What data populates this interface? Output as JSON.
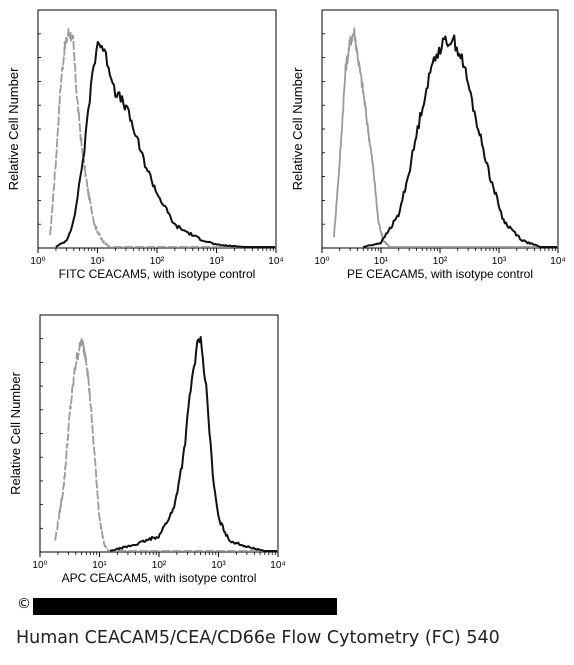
{
  "chart_data": [
    {
      "type": "histogram",
      "xlabel": "FITC CEACAM5,  with isotype control",
      "ylabel": "Relative Cell Number",
      "xscale": "log",
      "xlim": [
        1,
        10000
      ],
      "x_tick_labels": [
        "10⁰",
        "10¹",
        "10²",
        "10³",
        "10⁴"
      ],
      "series": [
        {
          "role": "isotype control",
          "color": "#9a9a9a",
          "style": "dashed",
          "x": [
            1.6,
            2.0,
            2.4,
            2.8,
            3.3,
            3.9,
            4.5,
            5.5,
            7,
            9,
            12,
            16
          ],
          "y": [
            0.05,
            0.4,
            0.75,
            0.92,
            1.0,
            0.95,
            0.7,
            0.45,
            0.25,
            0.1,
            0.03,
            0.0
          ]
        },
        {
          "role": "CEACAM5",
          "color": "#111111",
          "style": "solid",
          "x": [
            2,
            3,
            4,
            6,
            8,
            10,
            12,
            15,
            20,
            30,
            40,
            60,
            100,
            200,
            500,
            1000,
            3000
          ],
          "y": [
            0.0,
            0.03,
            0.12,
            0.45,
            0.78,
            0.95,
            0.93,
            0.85,
            0.72,
            0.65,
            0.55,
            0.4,
            0.25,
            0.1,
            0.04,
            0.01,
            0.0
          ]
        }
      ]
    },
    {
      "type": "histogram",
      "xlabel": "PE CEACAM5,  with isotype control",
      "ylabel": "Relative Cell Number",
      "xscale": "log",
      "xlim": [
        1,
        10000
      ],
      "x_tick_labels": [
        "10⁰",
        "10¹",
        "10²",
        "10³",
        "10⁴"
      ],
      "series": [
        {
          "role": "isotype control",
          "color": "#9a9a9a",
          "style": "solid",
          "x": [
            1.6,
            2.0,
            2.5,
            3.0,
            3.5,
            4.2,
            5.0,
            6.0,
            7.5,
            9,
            11,
            14
          ],
          "y": [
            0.05,
            0.4,
            0.82,
            0.95,
            1.0,
            0.85,
            0.72,
            0.55,
            0.35,
            0.12,
            0.03,
            0.0
          ]
        },
        {
          "role": "CEACAM5",
          "color": "#111111",
          "style": "solid",
          "x": [
            5,
            10,
            20,
            30,
            50,
            80,
            120,
            170,
            250,
            400,
            700,
            1200,
            2500,
            5000
          ],
          "y": [
            0.0,
            0.02,
            0.15,
            0.35,
            0.65,
            0.88,
            0.95,
            0.96,
            0.85,
            0.6,
            0.33,
            0.12,
            0.03,
            0.0
          ]
        }
      ]
    },
    {
      "type": "histogram",
      "xlabel": "APC CEACAM5, with isotype control",
      "ylabel": "Relative Cell Number",
      "xscale": "log",
      "xlim": [
        1,
        10000
      ],
      "x_tick_labels": [
        "10⁰",
        "10¹",
        "10²",
        "10³",
        "10⁴"
      ],
      "series": [
        {
          "role": "isotype control",
          "color": "#9a9a9a",
          "style": "dashed",
          "x": [
            1.8,
            2.5,
            3.2,
            4.0,
            5.0,
            6.0,
            7.0,
            8.5,
            10,
            12,
            14
          ],
          "y": [
            0.05,
            0.3,
            0.65,
            0.88,
            0.98,
            0.9,
            0.7,
            0.4,
            0.15,
            0.03,
            0.0
          ]
        },
        {
          "role": "CEACAM5",
          "color": "#111111",
          "style": "solid",
          "x": [
            15,
            40,
            100,
            180,
            260,
            340,
            420,
            480,
            550,
            650,
            800,
            1000,
            1500,
            3000,
            6000
          ],
          "y": [
            0.0,
            0.03,
            0.07,
            0.2,
            0.45,
            0.75,
            0.92,
            1.0,
            0.9,
            0.7,
            0.35,
            0.15,
            0.05,
            0.02,
            0.0
          ]
        }
      ]
    }
  ],
  "caption": "Human CEACAM5/CEA/CD66e Flow Cytometry (FC) 540",
  "copyright_symbol": "©"
}
